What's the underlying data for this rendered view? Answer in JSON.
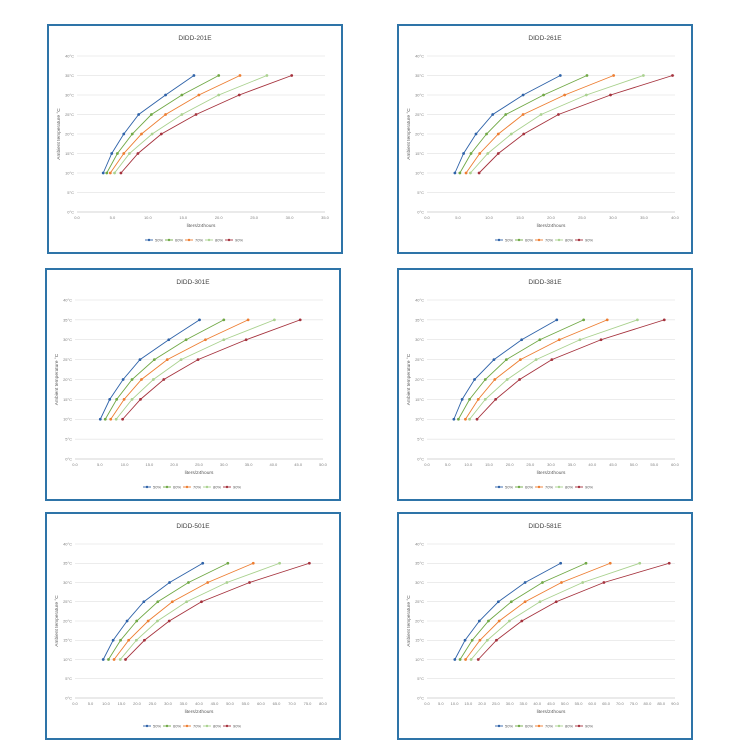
{
  "chart_data": [
    {
      "type": "line",
      "title": "DIDD-201E",
      "xlabel": "liters/24hours",
      "ylabel": "Ambient temperature °C",
      "xlim": [
        0,
        35
      ],
      "xticks": [
        "0.0",
        "5.0",
        "10.0",
        "15.0",
        "20.0",
        "25.0",
        "30.0",
        "35.0"
      ],
      "ylim": [
        0,
        40
      ],
      "yticks": [
        "0°C",
        "5°C",
        "10°C",
        "15°C",
        "20°C",
        "25°C",
        "30°C",
        "35°C",
        "40°C"
      ],
      "y": [
        10,
        15,
        20,
        25,
        30,
        35
      ],
      "series": [
        {
          "name": "50%",
          "color": "#2e62a8",
          "x": [
            3.7,
            4.9,
            6.6,
            8.7,
            12.5,
            16.5
          ]
        },
        {
          "name": "60%",
          "color": "#70a845",
          "x": [
            4.2,
            5.7,
            7.8,
            10.5,
            14.8,
            20.0
          ]
        },
        {
          "name": "70%",
          "color": "#ed7d31",
          "x": [
            4.7,
            6.6,
            9.1,
            12.5,
            17.2,
            23.0
          ]
        },
        {
          "name": "80%",
          "color": "#a9d18e",
          "x": [
            5.3,
            7.4,
            10.6,
            14.8,
            20.0,
            26.8
          ]
        },
        {
          "name": "90%",
          "color": "#a5323d",
          "x": [
            6.2,
            8.6,
            11.9,
            16.8,
            22.9,
            30.3
          ]
        }
      ],
      "legend": "bottom"
    },
    {
      "type": "line",
      "title": "DIDD-261E",
      "xlabel": "liters/24hours",
      "ylabel": "Ambient temperature °C",
      "xlim": [
        0,
        40
      ],
      "xticks": [
        "0.0",
        "5.0",
        "10.0",
        "15.0",
        "20.0",
        "25.0",
        "30.0",
        "35.0",
        "40.0"
      ],
      "ylim": [
        0,
        40
      ],
      "yticks": [
        "0°C",
        "5°C",
        "10°C",
        "15°C",
        "20°C",
        "25°C",
        "30°C",
        "35°C",
        "40°C"
      ],
      "y": [
        10,
        15,
        20,
        25,
        30,
        35
      ],
      "series": [
        {
          "name": "50%",
          "color": "#2e62a8",
          "x": [
            4.5,
            5.9,
            7.9,
            10.6,
            15.5,
            21.5
          ]
        },
        {
          "name": "60%",
          "color": "#70a845",
          "x": [
            5.3,
            7.1,
            9.6,
            12.7,
            18.8,
            25.8
          ]
        },
        {
          "name": "70%",
          "color": "#ed7d31",
          "x": [
            6.3,
            8.5,
            11.5,
            15.5,
            22.2,
            30.1
          ]
        },
        {
          "name": "80%",
          "color": "#a9d18e",
          "x": [
            7.0,
            9.8,
            13.6,
            18.4,
            25.7,
            34.9
          ]
        },
        {
          "name": "90%",
          "color": "#a5323d",
          "x": [
            8.4,
            11.5,
            15.6,
            21.2,
            29.6,
            39.6
          ]
        }
      ],
      "legend": "bottom"
    },
    {
      "type": "line",
      "title": "DIDD-301E",
      "xlabel": "liters/24hours",
      "ylabel": "Ambient temperature °C",
      "xlim": [
        0,
        50
      ],
      "xticks": [
        "0.0",
        "5.0",
        "10.0",
        "15.0",
        "20.0",
        "25.0",
        "30.0",
        "35.0",
        "40.0",
        "45.0",
        "50.0"
      ],
      "ylim": [
        0,
        40
      ],
      "yticks": [
        "0°C",
        "5°C",
        "10°C",
        "15°C",
        "20°C",
        "25°C",
        "30°C",
        "35°C",
        "40°C"
      ],
      "y": [
        10,
        15,
        20,
        25,
        30,
        35
      ],
      "series": [
        {
          "name": "50%",
          "color": "#2e62a8",
          "x": [
            5.1,
            7.0,
            9.7,
            13.1,
            18.9,
            25.1
          ]
        },
        {
          "name": "60%",
          "color": "#70a845",
          "x": [
            6.1,
            8.4,
            11.5,
            16.0,
            22.4,
            30.0
          ]
        },
        {
          "name": "70%",
          "color": "#ed7d31",
          "x": [
            7.2,
            9.9,
            13.4,
            18.6,
            26.3,
            34.9
          ]
        },
        {
          "name": "80%",
          "color": "#a9d18e",
          "x": [
            8.3,
            11.5,
            15.8,
            21.4,
            30.0,
            40.2
          ]
        },
        {
          "name": "90%",
          "color": "#a5323d",
          "x": [
            9.6,
            13.2,
            17.9,
            24.8,
            34.5,
            45.4
          ]
        }
      ],
      "legend": "bottom"
    },
    {
      "type": "line",
      "title": "DIDD-381E",
      "xlabel": "liters/24hours",
      "ylabel": "Ambient temperature °C",
      "xlim": [
        0,
        60
      ],
      "xticks": [
        "0.0",
        "5.0",
        "10.0",
        "15.0",
        "20.0",
        "25.0",
        "30.0",
        "35.0",
        "40.0",
        "45.0",
        "50.0",
        "55.0",
        "60.0"
      ],
      "ylim": [
        0,
        40
      ],
      "yticks": [
        "0°C",
        "5°C",
        "10°C",
        "15°C",
        "20°C",
        "25°C",
        "30°C",
        "35°C",
        "40°C"
      ],
      "y": [
        10,
        15,
        20,
        25,
        30,
        35
      ],
      "series": [
        {
          "name": "50%",
          "color": "#2e62a8",
          "x": [
            6.5,
            8.5,
            11.5,
            16.2,
            22.9,
            31.4
          ]
        },
        {
          "name": "60%",
          "color": "#70a845",
          "x": [
            7.6,
            10.3,
            14.1,
            19.2,
            27.3,
            37.9
          ]
        },
        {
          "name": "70%",
          "color": "#ed7d31",
          "x": [
            9.3,
            12.4,
            16.4,
            22.6,
            32.0,
            43.6
          ]
        },
        {
          "name": "80%",
          "color": "#a9d18e",
          "x": [
            10.3,
            14.1,
            19.4,
            26.4,
            37.0,
            50.9
          ]
        },
        {
          "name": "90%",
          "color": "#a5323d",
          "x": [
            12.1,
            16.6,
            22.4,
            30.2,
            42.1,
            57.4
          ]
        }
      ],
      "legend": "bottom"
    },
    {
      "type": "line",
      "title": "DIDD-501E",
      "xlabel": "liters/24hours",
      "ylabel": "Ambient temperature °C",
      "xlim": [
        0,
        80
      ],
      "xticks": [
        "0.0",
        "5.0",
        "10.0",
        "15.0",
        "20.0",
        "25.0",
        "30.0",
        "35.0",
        "40.0",
        "45.0",
        "50.0",
        "55.0",
        "60.0",
        "65.0",
        "70.0",
        "75.0",
        "80.0"
      ],
      "ylim": [
        0,
        40
      ],
      "yticks": [
        "0°C",
        "5°C",
        "10°C",
        "15°C",
        "20°C",
        "25°C",
        "30°C",
        "35°C",
        "40°C"
      ],
      "y": [
        10,
        15,
        20,
        25,
        30,
        35
      ],
      "series": [
        {
          "name": "50%",
          "color": "#2e62a8",
          "x": [
            9.1,
            12.3,
            16.8,
            22.2,
            30.5,
            41.2
          ]
        },
        {
          "name": "60%",
          "color": "#70a845",
          "x": [
            10.8,
            14.7,
            19.9,
            26.7,
            36.6,
            49.3
          ]
        },
        {
          "name": "70%",
          "color": "#ed7d31",
          "x": [
            12.6,
            17.3,
            23.6,
            31.4,
            42.8,
            57.5
          ]
        },
        {
          "name": "80%",
          "color": "#a9d18e",
          "x": [
            14.6,
            19.8,
            26.6,
            36.0,
            49.0,
            66.0
          ]
        },
        {
          "name": "90%",
          "color": "#a5323d",
          "x": [
            16.3,
            22.4,
            30.4,
            40.8,
            56.3,
            75.6
          ]
        }
      ],
      "legend": "bottom"
    },
    {
      "type": "line",
      "title": "DIDD-581E",
      "xlabel": "liters/24hours",
      "ylabel": "Ambient temperature °C",
      "xlim": [
        0,
        90
      ],
      "xticks": [
        "0.0",
        "5.0",
        "10.0",
        "15.0",
        "20.0",
        "25.0",
        "30.0",
        "35.0",
        "40.0",
        "45.0",
        "50.0",
        "55.0",
        "60.0",
        "65.0",
        "70.0",
        "75.0",
        "80.0",
        "85.0",
        "90.0"
      ],
      "ylim": [
        0,
        40
      ],
      "yticks": [
        "0°C",
        "5°C",
        "10°C",
        "15°C",
        "20°C",
        "25°C",
        "30°C",
        "35°C",
        "40°C"
      ],
      "y": [
        10,
        15,
        20,
        25,
        30,
        35
      ],
      "series": [
        {
          "name": "50%",
          "color": "#2e62a8",
          "x": [
            10.1,
            13.8,
            19.0,
            25.9,
            35.6,
            48.5
          ]
        },
        {
          "name": "60%",
          "color": "#70a845",
          "x": [
            12.0,
            16.4,
            22.3,
            30.6,
            41.9,
            57.7
          ]
        },
        {
          "name": "70%",
          "color": "#ed7d31",
          "x": [
            14.0,
            19.2,
            26.2,
            35.6,
            48.8,
            66.5
          ]
        },
        {
          "name": "80%",
          "color": "#a9d18e",
          "x": [
            16.0,
            21.9,
            29.9,
            41.0,
            56.5,
            77.2
          ]
        },
        {
          "name": "90%",
          "color": "#a5323d",
          "x": [
            18.6,
            25.2,
            34.4,
            46.9,
            64.2,
            87.9
          ]
        }
      ],
      "legend": "bottom"
    }
  ]
}
